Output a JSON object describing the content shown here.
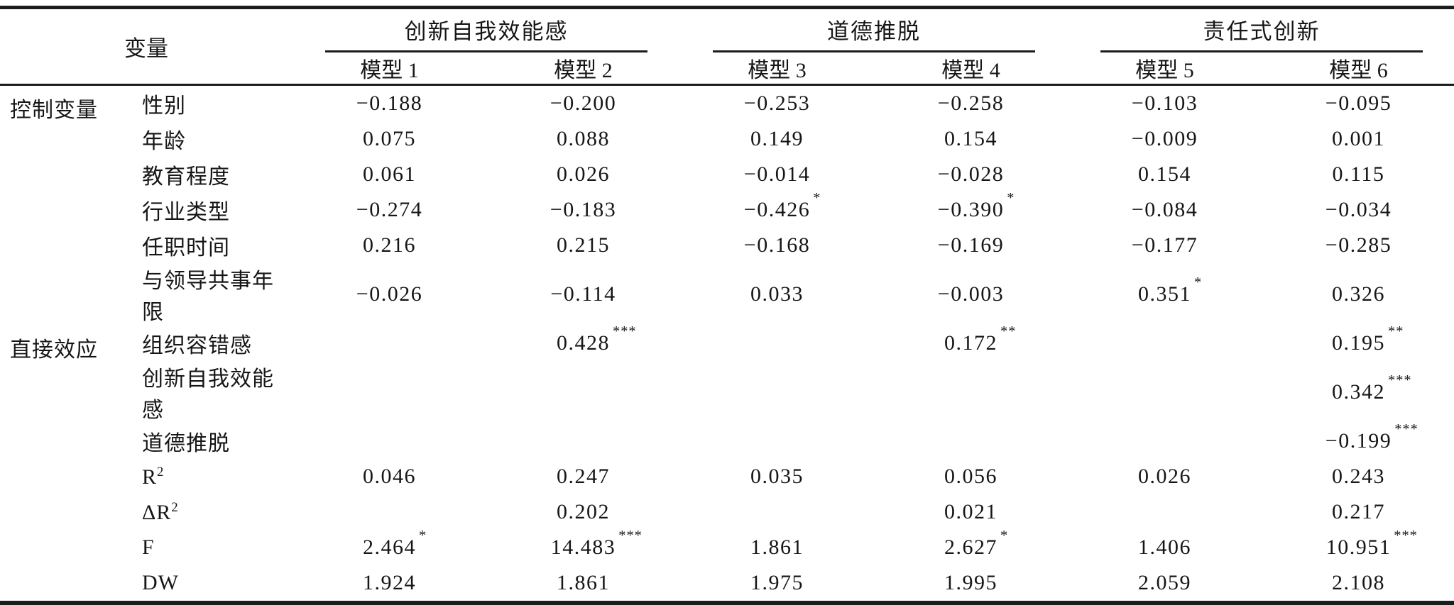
{
  "header": {
    "corner": "变量",
    "groups": [
      "创新自我效能感",
      "道德推脱",
      "责任式创新"
    ],
    "models": [
      "模型 1",
      "模型 2",
      "模型 3",
      "模型 4",
      "模型 5",
      "模型 6"
    ]
  },
  "sections": {
    "control": "控制变量",
    "direct": "直接效应"
  },
  "rows": [
    {
      "label": "性别",
      "sup": "",
      "c": [
        {
          "v": "−0.188",
          "s": ""
        },
        {
          "v": "−0.200",
          "s": ""
        },
        {
          "v": "−0.253",
          "s": ""
        },
        {
          "v": "−0.258",
          "s": ""
        },
        {
          "v": "−0.103",
          "s": ""
        },
        {
          "v": "−0.095",
          "s": ""
        }
      ]
    },
    {
      "label": "年龄",
      "sup": "",
      "c": [
        {
          "v": "0.075",
          "s": ""
        },
        {
          "v": "0.088",
          "s": ""
        },
        {
          "v": "0.149",
          "s": ""
        },
        {
          "v": "0.154",
          "s": ""
        },
        {
          "v": "−0.009",
          "s": ""
        },
        {
          "v": "0.001",
          "s": ""
        }
      ]
    },
    {
      "label": "教育程度",
      "sup": "",
      "c": [
        {
          "v": "0.061",
          "s": ""
        },
        {
          "v": "0.026",
          "s": ""
        },
        {
          "v": "−0.014",
          "s": ""
        },
        {
          "v": "−0.028",
          "s": ""
        },
        {
          "v": "0.154",
          "s": ""
        },
        {
          "v": "0.115",
          "s": ""
        }
      ]
    },
    {
      "label": "行业类型",
      "sup": "",
      "c": [
        {
          "v": "−0.274",
          "s": ""
        },
        {
          "v": "−0.183",
          "s": ""
        },
        {
          "v": "−0.426",
          "s": "*"
        },
        {
          "v": "−0.390",
          "s": "*"
        },
        {
          "v": "−0.084",
          "s": ""
        },
        {
          "v": "−0.034",
          "s": ""
        }
      ]
    },
    {
      "label": "任职时间",
      "sup": "",
      "c": [
        {
          "v": "0.216",
          "s": ""
        },
        {
          "v": "0.215",
          "s": ""
        },
        {
          "v": "−0.168",
          "s": ""
        },
        {
          "v": "−0.169",
          "s": ""
        },
        {
          "v": "−0.177",
          "s": ""
        },
        {
          "v": "−0.285",
          "s": ""
        }
      ]
    },
    {
      "label": "与领导共事年限",
      "sup": "",
      "c": [
        {
          "v": "−0.026",
          "s": ""
        },
        {
          "v": "−0.114",
          "s": ""
        },
        {
          "v": "0.033",
          "s": ""
        },
        {
          "v": "−0.003",
          "s": ""
        },
        {
          "v": "0.351",
          "s": "*"
        },
        {
          "v": "0.326",
          "s": ""
        }
      ]
    },
    {
      "label": "组织容错感",
      "sup": "",
      "c": [
        {
          "v": "",
          "s": ""
        },
        {
          "v": "0.428",
          "s": "***"
        },
        {
          "v": "",
          "s": ""
        },
        {
          "v": "0.172",
          "s": "**"
        },
        {
          "v": "",
          "s": ""
        },
        {
          "v": "0.195",
          "s": "**"
        }
      ]
    },
    {
      "label": "创新自我效能感",
      "sup": "",
      "c": [
        {
          "v": "",
          "s": ""
        },
        {
          "v": "",
          "s": ""
        },
        {
          "v": "",
          "s": ""
        },
        {
          "v": "",
          "s": ""
        },
        {
          "v": "",
          "s": ""
        },
        {
          "v": "0.342",
          "s": "***"
        }
      ]
    },
    {
      "label": "道德推脱",
      "sup": "",
      "c": [
        {
          "v": "",
          "s": ""
        },
        {
          "v": "",
          "s": ""
        },
        {
          "v": "",
          "s": ""
        },
        {
          "v": "",
          "s": ""
        },
        {
          "v": "",
          "s": ""
        },
        {
          "v": "−0.199",
          "s": "***"
        }
      ]
    },
    {
      "label": "R",
      "sup": "2",
      "c": [
        {
          "v": "0.046",
          "s": ""
        },
        {
          "v": "0.247",
          "s": ""
        },
        {
          "v": "0.035",
          "s": ""
        },
        {
          "v": "0.056",
          "s": ""
        },
        {
          "v": "0.026",
          "s": ""
        },
        {
          "v": "0.243",
          "s": ""
        }
      ]
    },
    {
      "label": "ΔR",
      "sup": "2",
      "c": [
        {
          "v": "",
          "s": ""
        },
        {
          "v": "0.202",
          "s": ""
        },
        {
          "v": "",
          "s": ""
        },
        {
          "v": "0.021",
          "s": ""
        },
        {
          "v": "",
          "s": ""
        },
        {
          "v": "0.217",
          "s": ""
        }
      ]
    },
    {
      "label": "F",
      "sup": "",
      "c": [
        {
          "v": "2.464",
          "s": "*"
        },
        {
          "v": "14.483",
          "s": "***"
        },
        {
          "v": "1.861",
          "s": ""
        },
        {
          "v": "2.627",
          "s": "*"
        },
        {
          "v": "1.406",
          "s": ""
        },
        {
          "v": "10.951",
          "s": "***"
        }
      ]
    },
    {
      "label": "DW",
      "sup": "",
      "c": [
        {
          "v": "1.924",
          "s": ""
        },
        {
          "v": "1.861",
          "s": ""
        },
        {
          "v": "1.975",
          "s": ""
        },
        {
          "v": "1.995",
          "s": ""
        },
        {
          "v": "2.059",
          "s": ""
        },
        {
          "v": "2.108",
          "s": ""
        }
      ]
    }
  ]
}
